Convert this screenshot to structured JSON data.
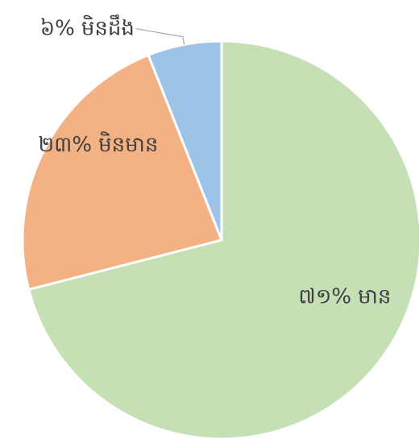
{
  "chart_data": {
    "type": "pie",
    "categories": [
      "មាន",
      "មិនមាន",
      "មិនដឹង"
    ],
    "values": [
      71,
      23,
      6
    ],
    "value_labels": [
      "៧១%",
      "២៣%",
      "៦%"
    ],
    "colors": [
      "#c5e0b4",
      "#f4b183",
      "#9dc3e6"
    ]
  }
}
